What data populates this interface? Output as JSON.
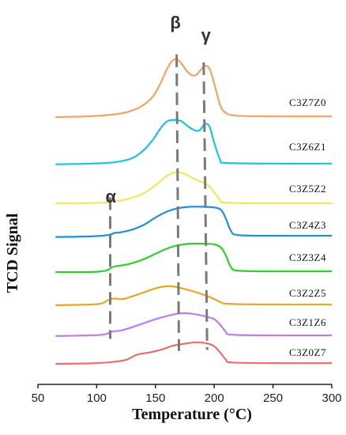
{
  "chart_data": {
    "type": "line",
    "xlabel": "Temperature (°C)",
    "ylabel": "TCD Signal",
    "xlim": [
      50,
      300
    ],
    "x_ticks": [
      50,
      100,
      150,
      200,
      250,
      300
    ],
    "y_ticks_shown": false,
    "legend": "none; series labels printed at right end of each curve",
    "grid": false,
    "annotations": [
      {
        "text": "α",
        "x": 112
      },
      {
        "text": "β",
        "x": 167
      },
      {
        "text": "γ",
        "x": 193
      }
    ],
    "series": [
      {
        "name": "C3Z7Z0",
        "color": "#F4A460",
        "points": [
          [
            65,
            10
          ],
          [
            90,
            11
          ],
          [
            110,
            13
          ],
          [
            125,
            17
          ],
          [
            138,
            26
          ],
          [
            148,
            41
          ],
          [
            155,
            63
          ],
          [
            160,
            82
          ],
          [
            164,
            93
          ],
          [
            168,
            96
          ],
          [
            172,
            90
          ],
          [
            176,
            80
          ],
          [
            180,
            73
          ],
          [
            184,
            72
          ],
          [
            188,
            79
          ],
          [
            192,
            86
          ],
          [
            196,
            82
          ],
          [
            200,
            60
          ],
          [
            205,
            28
          ],
          [
            210,
            16
          ],
          [
            220,
            12
          ],
          [
            250,
            11
          ],
          [
            300,
            11
          ]
        ]
      },
      {
        "name": "C3Z6Z1",
        "color": "#16C6DF",
        "points": [
          [
            65,
            8
          ],
          [
            95,
            9
          ],
          [
            115,
            11
          ],
          [
            130,
            17
          ],
          [
            140,
            29
          ],
          [
            148,
            45
          ],
          [
            155,
            63
          ],
          [
            160,
            72
          ],
          [
            166,
            74
          ],
          [
            172,
            72
          ],
          [
            178,
            64
          ],
          [
            184,
            58
          ],
          [
            188,
            59
          ],
          [
            192,
            68
          ],
          [
            196,
            64
          ],
          [
            200,
            40
          ],
          [
            205,
            15
          ],
          [
            210,
            10
          ],
          [
            250,
            9
          ],
          [
            300,
            9
          ]
        ]
      },
      {
        "name": "C3Z5Z2",
        "color": "#F2E85A",
        "points": [
          [
            65,
            10
          ],
          [
            90,
            10
          ],
          [
            112,
            12
          ],
          [
            128,
            17
          ],
          [
            140,
            25
          ],
          [
            150,
            37
          ],
          [
            160,
            51
          ],
          [
            167,
            56
          ],
          [
            173,
            55
          ],
          [
            180,
            49
          ],
          [
            186,
            44
          ],
          [
            192,
            40
          ],
          [
            196,
            35
          ],
          [
            200,
            26
          ],
          [
            205,
            15
          ],
          [
            210,
            11
          ],
          [
            250,
            10
          ],
          [
            300,
            10
          ]
        ]
      },
      {
        "name": "C3Z4Z3",
        "color": "#1E90DD",
        "points": [
          [
            65,
            8
          ],
          [
            95,
            9
          ],
          [
            110,
            11
          ],
          [
            115,
            14
          ],
          [
            120,
            15
          ],
          [
            130,
            19
          ],
          [
            140,
            26
          ],
          [
            150,
            37
          ],
          [
            160,
            46
          ],
          [
            170,
            51
          ],
          [
            180,
            53
          ],
          [
            190,
            53
          ],
          [
            200,
            52
          ],
          [
            206,
            48
          ],
          [
            210,
            35
          ],
          [
            214,
            18
          ],
          [
            220,
            11
          ],
          [
            250,
            10
          ],
          [
            300,
            10
          ]
        ]
      },
      {
        "name": "C3Z3Z4",
        "color": "#2ECF2E",
        "points": [
          [
            65,
            9
          ],
          [
            95,
            9
          ],
          [
            108,
            11
          ],
          [
            113,
            16
          ],
          [
            118,
            18
          ],
          [
            128,
            21
          ],
          [
            140,
            28
          ],
          [
            150,
            36
          ],
          [
            160,
            44
          ],
          [
            170,
            49
          ],
          [
            180,
            51
          ],
          [
            190,
            51
          ],
          [
            200,
            50
          ],
          [
            206,
            45
          ],
          [
            210,
            33
          ],
          [
            214,
            17
          ],
          [
            220,
            11
          ],
          [
            250,
            10
          ],
          [
            300,
            10
          ]
        ]
      },
      {
        "name": "C3Z2Z5",
        "color": "#E7A727",
        "points": [
          [
            65,
            9
          ],
          [
            95,
            10
          ],
          [
            105,
            12
          ],
          [
            110,
            17
          ],
          [
            115,
            19
          ],
          [
            122,
            18
          ],
          [
            130,
            22
          ],
          [
            140,
            28
          ],
          [
            150,
            34
          ],
          [
            158,
            37
          ],
          [
            165,
            37
          ],
          [
            175,
            33
          ],
          [
            185,
            28
          ],
          [
            195,
            22
          ],
          [
            205,
            14
          ],
          [
            212,
            11
          ],
          [
            250,
            10
          ],
          [
            300,
            10
          ]
        ]
      },
      {
        "name": "C3Z1Z6",
        "color": "#C17BEF",
        "points": [
          [
            65,
            9
          ],
          [
            95,
            10
          ],
          [
            105,
            11
          ],
          [
            110,
            13
          ],
          [
            114,
            16
          ],
          [
            120,
            17
          ],
          [
            130,
            22
          ],
          [
            140,
            28
          ],
          [
            150,
            34
          ],
          [
            160,
            39
          ],
          [
            168,
            42
          ],
          [
            175,
            43
          ],
          [
            185,
            41
          ],
          [
            195,
            37
          ],
          [
            200,
            34
          ],
          [
            205,
            26
          ],
          [
            210,
            15
          ],
          [
            215,
            11
          ],
          [
            250,
            10
          ],
          [
            300,
            10
          ]
        ]
      },
      {
        "name": "C3Z0Z7",
        "color": "#EE6E6E",
        "points": [
          [
            65,
            10
          ],
          [
            100,
            11
          ],
          [
            115,
            13
          ],
          [
            125,
            16
          ],
          [
            130,
            20
          ],
          [
            135,
            24
          ],
          [
            145,
            27
          ],
          [
            155,
            31
          ],
          [
            165,
            37
          ],
          [
            175,
            40
          ],
          [
            185,
            42
          ],
          [
            195,
            40
          ],
          [
            200,
            36
          ],
          [
            205,
            27
          ],
          [
            210,
            16
          ],
          [
            215,
            12
          ],
          [
            250,
            11
          ],
          [
            300,
            11
          ]
        ]
      }
    ],
    "dashed_guides": [
      {
        "points": [
          [
            111.5,
            "C3Z5Z2"
          ],
          [
            111.5,
            "C3Z1Z6"
          ]
        ]
      },
      {
        "points": [
          [
            168,
            "C3Z7Z0"
          ],
          [
            170,
            "C3Z0Z7"
          ]
        ]
      },
      {
        "points": [
          [
            191,
            "C3Z7Z0"
          ],
          [
            194,
            "C3Z0Z7"
          ]
        ]
      }
    ]
  }
}
